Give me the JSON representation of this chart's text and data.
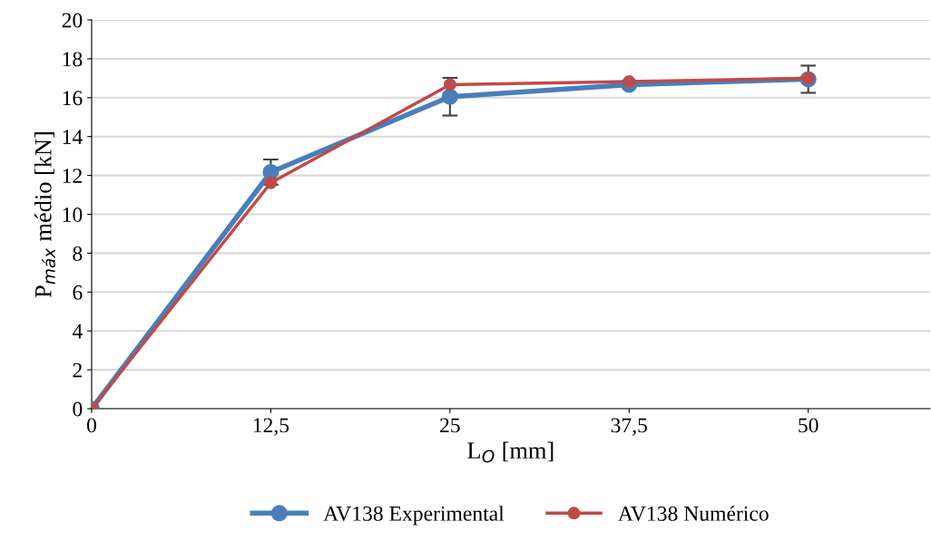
{
  "chart_data": {
    "type": "line",
    "xlabel": "L$_{O}$ [mm]",
    "ylabel": "P$_{máx}$ médio [kN]",
    "x": [
      0,
      12.5,
      25,
      37.5,
      50
    ],
    "xlim": [
      0,
      58.5
    ],
    "xticks": [
      0,
      {
        "value": 12.5,
        "label": "12,5"
      },
      25,
      {
        "value": 37.5,
        "label": "37,5"
      },
      50
    ],
    "ylim": [
      0,
      20
    ],
    "yticks": [
      0,
      2,
      4,
      6,
      8,
      10,
      12,
      14,
      16,
      18,
      20
    ],
    "series": [
      {
        "name": "AV138 Experimental",
        "color": "#4a7ebb",
        "values": [
          0,
          12.17,
          16.05,
          16.67,
          16.95
        ],
        "errors": [
          null,
          0.65,
          0.97,
          null,
          0.7
        ]
      },
      {
        "name": "AV138 Numérico",
        "color": "#be4b48",
        "values": [
          0,
          11.62,
          16.67,
          16.83,
          17.0
        ]
      }
    ],
    "grid": "y",
    "legend": "bottom",
    "marker": "circle",
    "line_style": "solid"
  }
}
